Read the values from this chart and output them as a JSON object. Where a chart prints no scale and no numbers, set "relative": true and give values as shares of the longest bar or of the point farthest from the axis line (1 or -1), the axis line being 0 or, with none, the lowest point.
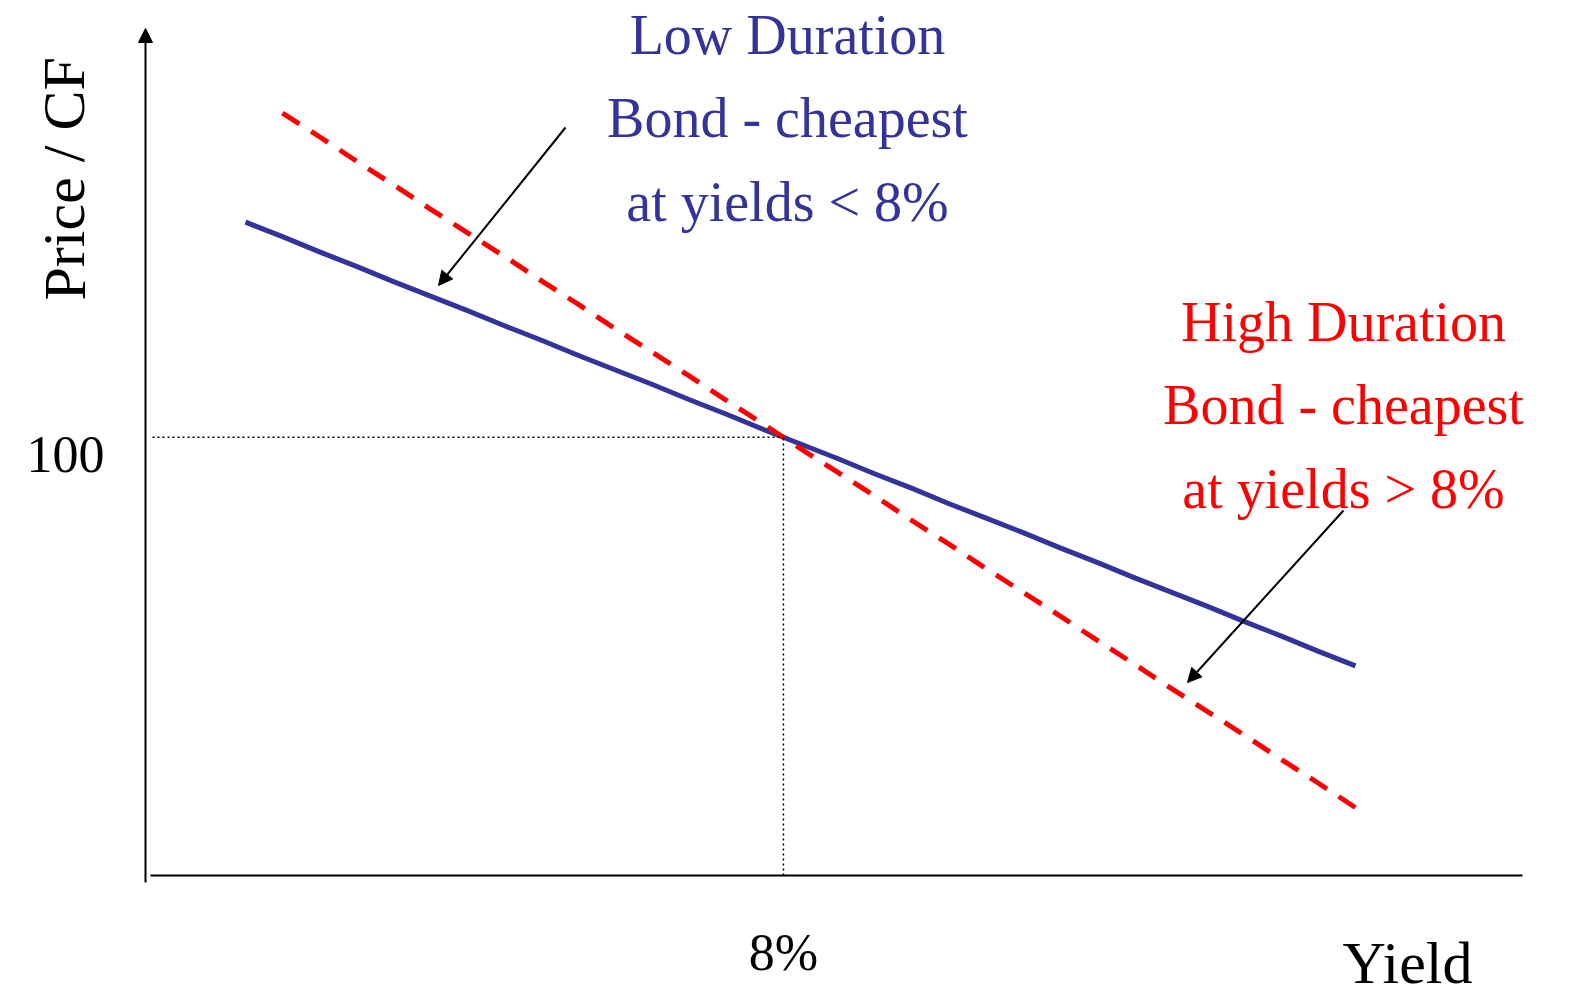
{
  "chart_data": {
    "type": "line",
    "xlabel": "Yield",
    "ylabel": "Price / CF",
    "relative": true,
    "categories": [
      null,
      null,
      null,
      null,
      null,
      null,
      null,
      null,
      null,
      null,
      null,
      null,
      null,
      null,
      null,
      null,
      null,
      null,
      null,
      null,
      null,
      null,
      null,
      null,
      null,
      null,
      null,
      null,
      null,
      null,
      null
    ],
    "series": [
      {
        "color": "#333399",
        "line_style": "solid",
        "values": [
          0.857,
          0.838,
          0.818,
          0.799,
          0.779,
          0.76,
          0.741,
          0.721,
          0.702,
          0.682,
          0.663,
          0.644,
          0.624,
          0.605,
          0.585,
          0.566,
          0.547,
          0.527,
          0.508,
          0.488,
          0.469,
          0.45,
          0.43,
          0.411,
          0.391,
          0.372,
          0.353,
          0.333,
          0.314,
          0.294,
          0.275
        ]
      },
      {
        "color": "#ff0000",
        "line_style": "dashed",
        "values": [
          null,
          1,
          0.969,
          0.937,
          0.906,
          0.874,
          0.843,
          0.812,
          0.78,
          0.749,
          0.717,
          0.686,
          0.655,
          0.623,
          0.592,
          0.56,
          0.529,
          0.498,
          0.466,
          0.435,
          0.403,
          0.372,
          0.341,
          0.309,
          0.278,
          0.246,
          0.215,
          0.184,
          0.152,
          0.121,
          0.089
        ]
      }
    ],
    "annotations": [
      "Low Duration\nBond - cheapest\nat yields < 8%",
      "High Duration\nBond - cheapest\nat yields > 8%",
      "8%",
      "100"
    ]
  }
}
